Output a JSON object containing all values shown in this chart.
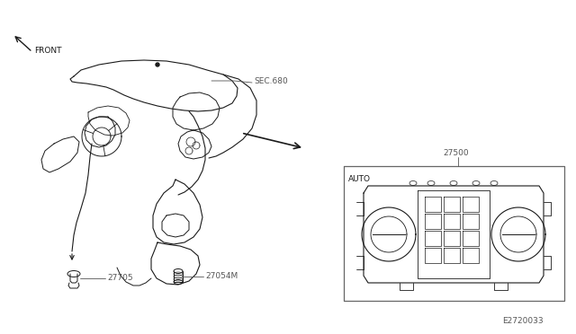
{
  "bg_color": "#ffffff",
  "line_color": "#1a1a1a",
  "text_color": "#1a1a1a",
  "label_color": "#555555",
  "diagram_number": "E2720033",
  "labels": {
    "sec660": "SEC.680",
    "part27500": "27500",
    "part27705": "27705",
    "part27054m": "27054M",
    "auto": "AUTO",
    "front": "FRONT"
  },
  "fig_width": 6.4,
  "fig_height": 3.72,
  "dpi": 100
}
